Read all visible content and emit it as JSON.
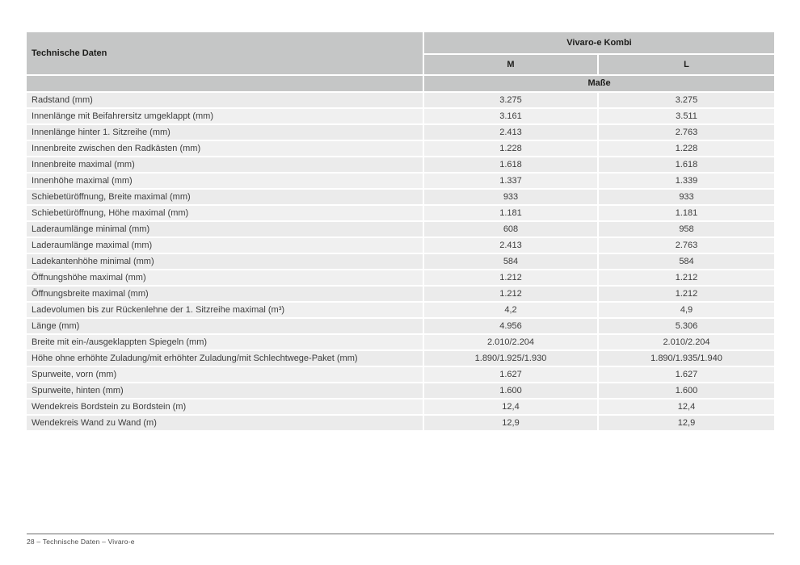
{
  "table": {
    "corner_label": "Technische Daten",
    "group_header": "Vivaro-e Kombi",
    "columns": {
      "m": "M",
      "l": "L"
    },
    "section_header": "Maße",
    "rows": [
      {
        "label": "Radstand (mm)",
        "m": "3.275",
        "l": "3.275"
      },
      {
        "label": "Innenlänge mit Beifahrersitz umgeklappt (mm)",
        "m": "3.161",
        "l": "3.511"
      },
      {
        "label": "Innenlänge hinter 1. Sitzreihe (mm)",
        "m": "2.413",
        "l": "2.763"
      },
      {
        "label": "Innenbreite zwischen den Radkästen (mm)",
        "m": "1.228",
        "l": "1.228"
      },
      {
        "label": "Innenbreite maximal (mm)",
        "m": "1.618",
        "l": "1.618"
      },
      {
        "label": "Innenhöhe maximal (mm)",
        "m": "1.337",
        "l": "1.339"
      },
      {
        "label": "Schiebetüröffnung, Breite maximal (mm)",
        "m": "933",
        "l": "933"
      },
      {
        "label": "Schiebetüröffnung, Höhe maximal (mm)",
        "m": "1.181",
        "l": "1.181"
      },
      {
        "label": "Laderaumlänge minimal (mm)",
        "m": "608",
        "l": "958"
      },
      {
        "label": "Laderaumlänge maximal (mm)",
        "m": "2.413",
        "l": "2.763"
      },
      {
        "label": "Ladekantenhöhe minimal (mm)",
        "m": "584",
        "l": "584"
      },
      {
        "label": "Öffnungshöhe maximal (mm)",
        "m": "1.212",
        "l": "1.212"
      },
      {
        "label": "Öffnungsbreite maximal (mm)",
        "m": "1.212",
        "l": "1.212"
      },
      {
        "label": "Ladevolumen bis zur Rückenlehne der 1. Sitzreihe maximal (m³)",
        "m": "4,2",
        "l": "4,9"
      },
      {
        "label": "Länge (mm)",
        "m": "4.956",
        "l": "5.306"
      },
      {
        "label": "Breite mit ein-/ausgeklappten Spiegeln (mm)",
        "m": "2.010/2.204",
        "l": "2.010/2.204"
      },
      {
        "label": "Höhe ohne erhöhte Zuladung/mit erhöhter Zuladung/mit Schlechtwege-Paket (mm)",
        "m": "1.890/1.925/1.930",
        "l": "1.890/1.935/1.940"
      },
      {
        "label": "Spurweite, vorn (mm)",
        "m": "1.627",
        "l": "1.627"
      },
      {
        "label": "Spurweite, hinten (mm)",
        "m": "1.600",
        "l": "1.600"
      },
      {
        "label": "Wendekreis Bordstein zu Bordstein (m)",
        "m": "12,4",
        "l": "12,4"
      },
      {
        "label": "Wendekreis Wand zu Wand (m)",
        "m": "12,9",
        "l": "12,9"
      }
    ]
  },
  "footer": {
    "text": "28 – Technische Daten – Vivaro-e"
  }
}
